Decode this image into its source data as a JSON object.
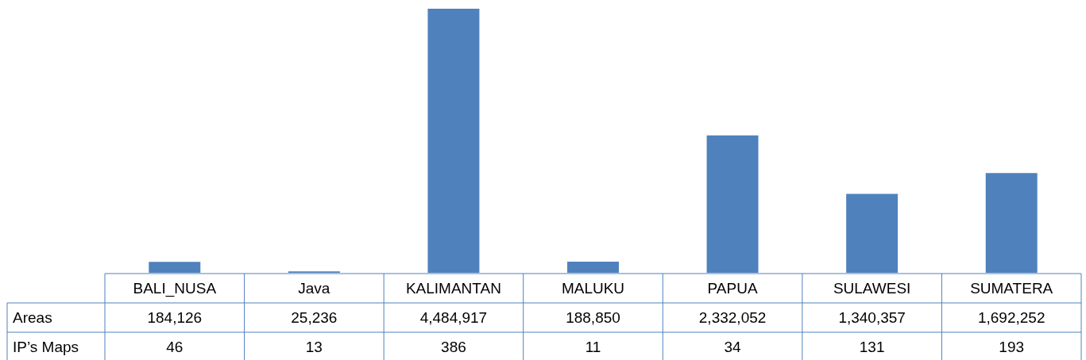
{
  "chart_data": {
    "type": "bar",
    "categories": [
      "BALI_NUSA",
      "Java",
      "KALIMANTAN",
      "MALUKU",
      "PAPUA",
      "SULAWESI",
      "SUMATERA"
    ],
    "series": [
      {
        "name": "Areas",
        "color": "#4f81bd",
        "values": [
          184126,
          25236,
          4484917,
          188850,
          2332052,
          1340357,
          1692252
        ],
        "value_labels": [
          "184,126",
          "25,236",
          "4,484,917",
          "188,850",
          "2,332,052",
          "1,340,357",
          "1,692,252"
        ]
      },
      {
        "name": "IP’s Maps",
        "values": [
          46,
          13,
          386,
          11,
          34,
          131,
          193
        ],
        "value_labels": [
          "46",
          "13",
          "386",
          "11",
          "34",
          "131",
          "193"
        ]
      }
    ]
  }
}
